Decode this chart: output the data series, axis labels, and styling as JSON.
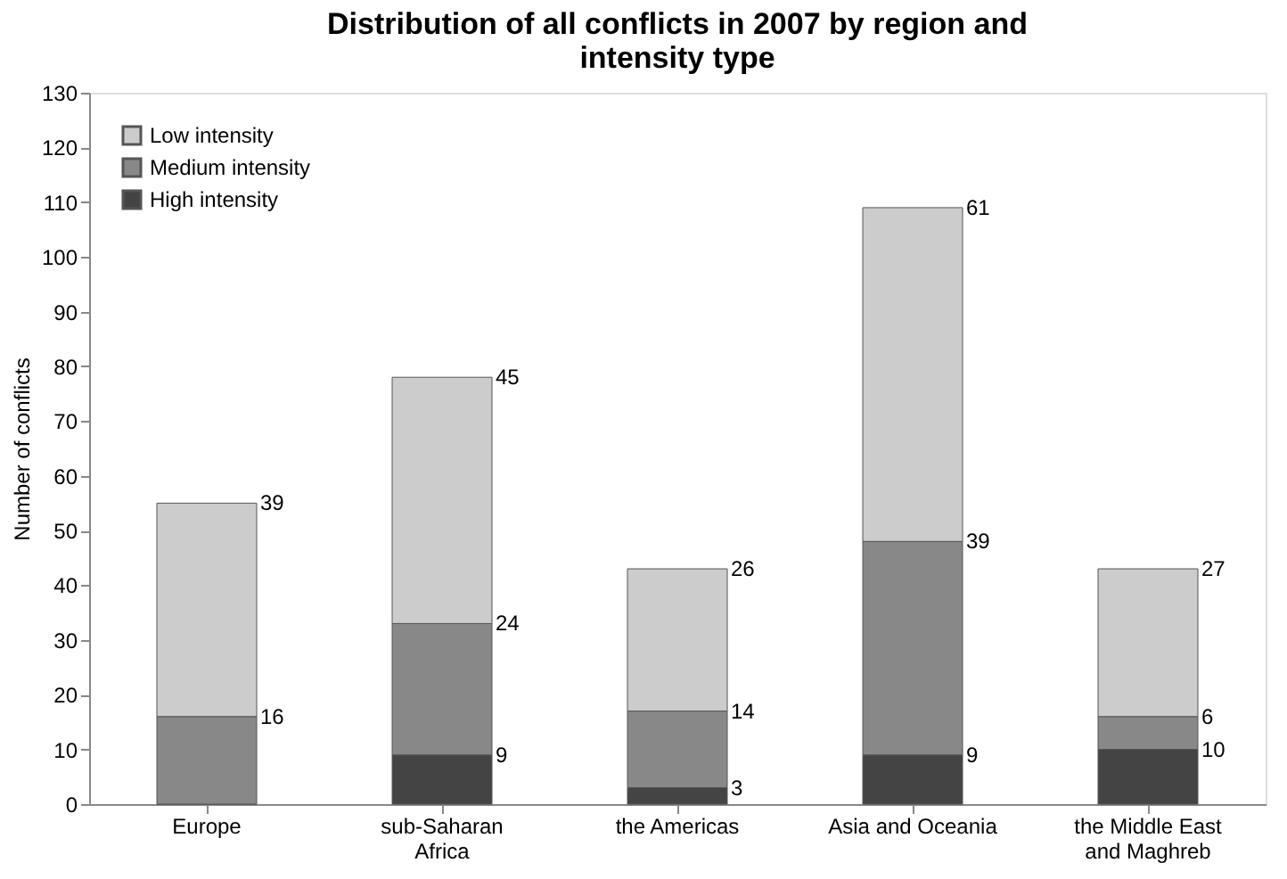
{
  "chart_data": {
    "type": "bar",
    "title": "Distribution of all conflicts in 2007 by region and intensity type",
    "ylabel": "Number of conflicts",
    "categories": [
      "Europe",
      "sub-Saharan Africa",
      "the Americas",
      "Asia and Oceania",
      "the Middle East and Maghreb"
    ],
    "stacked": true,
    "ylim": [
      0,
      130
    ],
    "yticks": [
      0,
      10,
      20,
      30,
      40,
      50,
      60,
      70,
      80,
      90,
      100,
      110,
      120,
      130
    ],
    "grid": false,
    "legend": "top left",
    "series": [
      {
        "name": "High intensity",
        "color": "#444444",
        "values": [
          0,
          9,
          3,
          9,
          10
        ],
        "value_labels": [
          null,
          "9",
          "3",
          "9",
          "10"
        ]
      },
      {
        "name": "Medium intensity",
        "color": "#888888",
        "values": [
          16,
          24,
          14,
          39,
          6
        ],
        "value_labels": [
          "16",
          "24",
          "14",
          "39",
          "6"
        ]
      },
      {
        "name": "Low intensity",
        "color": "#cccccc",
        "values": [
          39,
          45,
          26,
          61,
          27
        ],
        "value_labels": [
          "39",
          "45",
          "26",
          "61",
          "27"
        ]
      }
    ]
  }
}
